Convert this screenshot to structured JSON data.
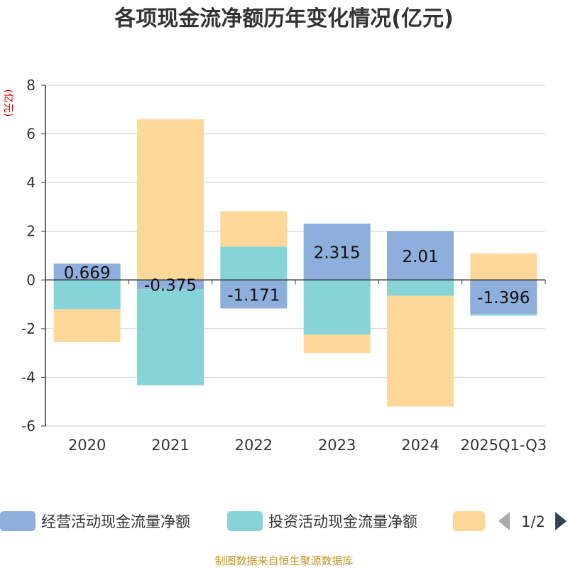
{
  "chart_data": {
    "type": "bar",
    "stacked": true,
    "title": "各项现金流净额历年变化情况(亿元)",
    "ylabel": "(亿元)",
    "ylim": [
      -6,
      8
    ],
    "yticks": [
      -6,
      -4,
      -2,
      0,
      2,
      4,
      6,
      8
    ],
    "categories": [
      "2020",
      "2021",
      "2022",
      "2023",
      "2024",
      "2025Q1-Q3"
    ],
    "series": [
      {
        "name": "经营活动现金流量净额",
        "color": "#8eaedb",
        "values": [
          0.669,
          -0.375,
          -1.171,
          2.315,
          2.01,
          -1.396
        ],
        "data_labels": [
          "0.669",
          "-0.375",
          "-1.171",
          "2.315",
          "2.01",
          "-1.396"
        ]
      },
      {
        "name": "投资活动现金流量净额",
        "color": "#86d4d7",
        "values": [
          -1.2,
          -3.95,
          1.37,
          -2.25,
          -0.65,
          -0.07
        ]
      },
      {
        "name": "",
        "color": "#fdd899",
        "values": [
          -1.35,
          6.6,
          1.46,
          -0.75,
          -4.55,
          1.08
        ]
      }
    ],
    "legend": {
      "page": "1/2",
      "position": "bottom"
    },
    "grid": true
  },
  "source_note": "制图数据来自恒生聚源数据库"
}
